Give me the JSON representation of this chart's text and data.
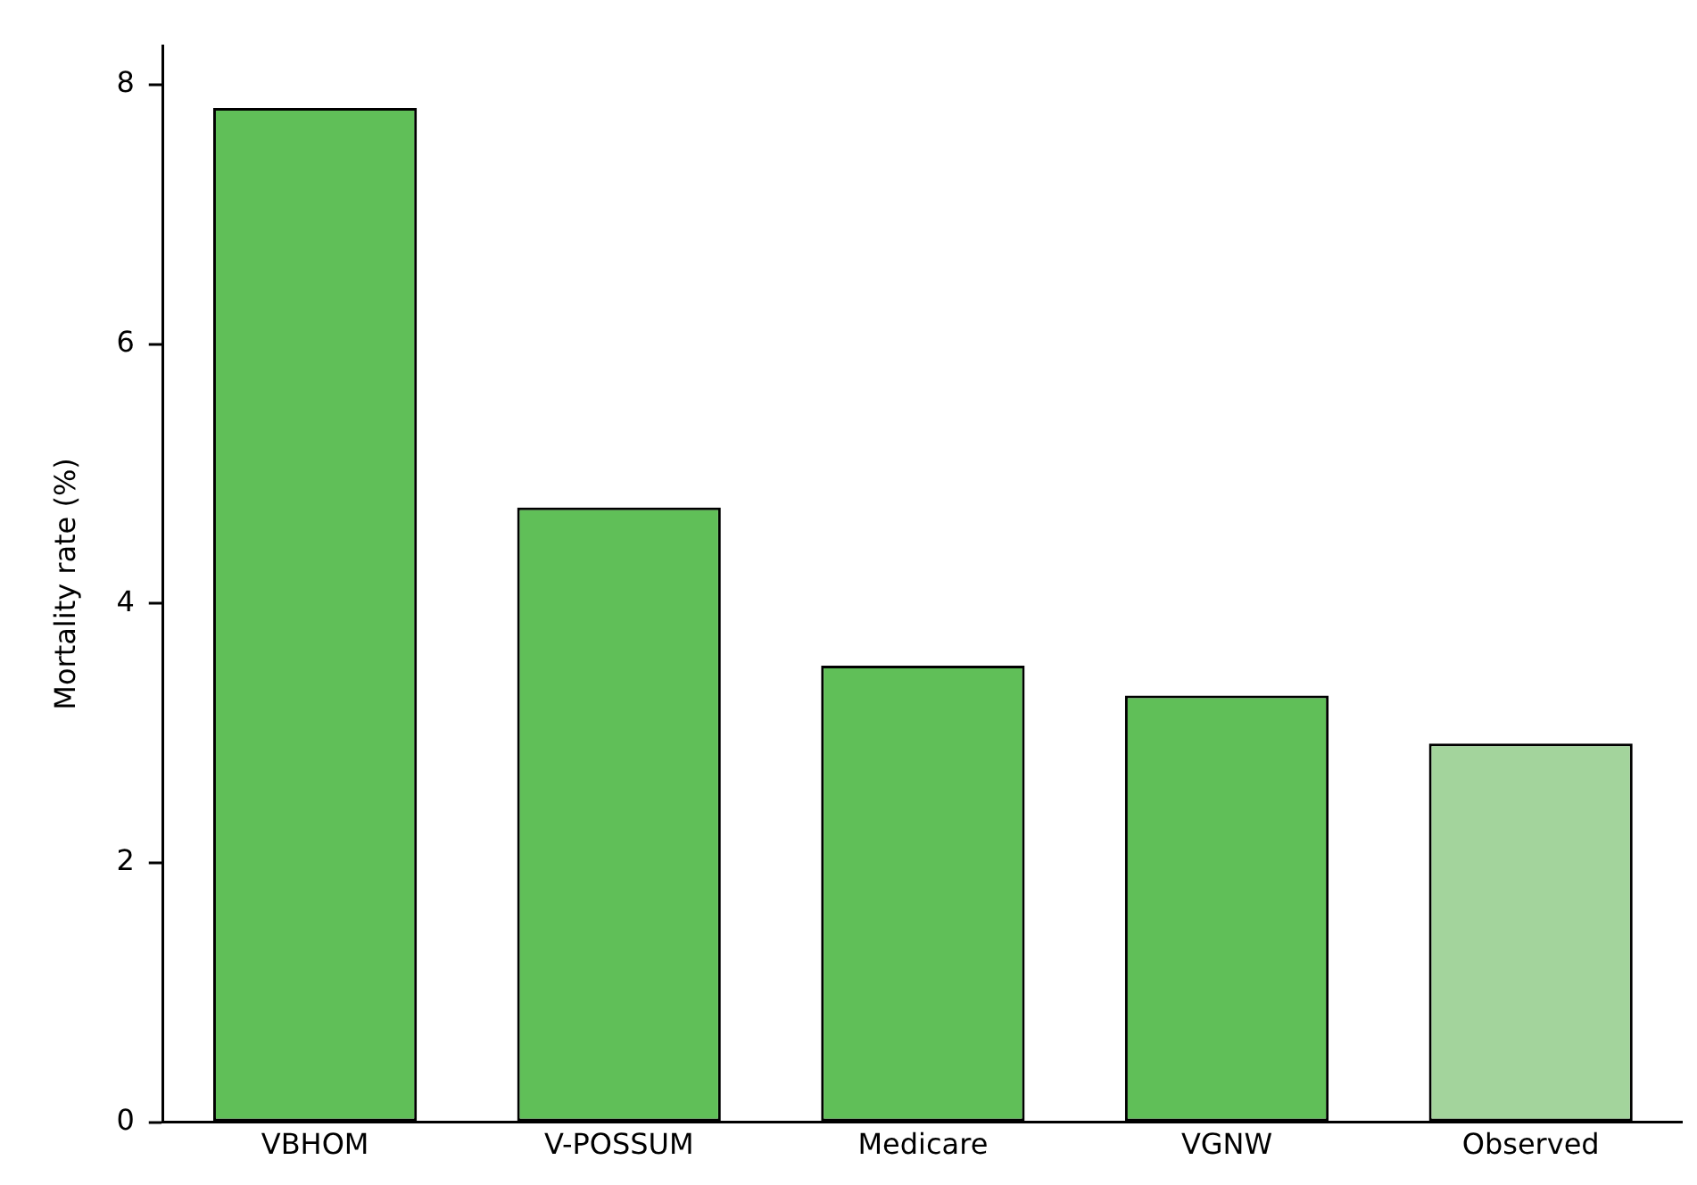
{
  "chart_data": {
    "type": "bar",
    "ylabel": "Mortality rate (%)",
    "categories": [
      "VBHOM",
      "V-POSSUM",
      "Medicare",
      "VGNW",
      "Observed"
    ],
    "values": [
      7.82,
      4.74,
      3.52,
      3.29,
      2.92
    ],
    "colors": [
      "#60bf58",
      "#60bf58",
      "#60bf58",
      "#60bf58",
      "#a3d49c"
    ],
    "ylim": [
      0,
      8.3
    ],
    "yticks": [
      0,
      2,
      4,
      6,
      8
    ],
    "grid": false,
    "legend": false
  }
}
